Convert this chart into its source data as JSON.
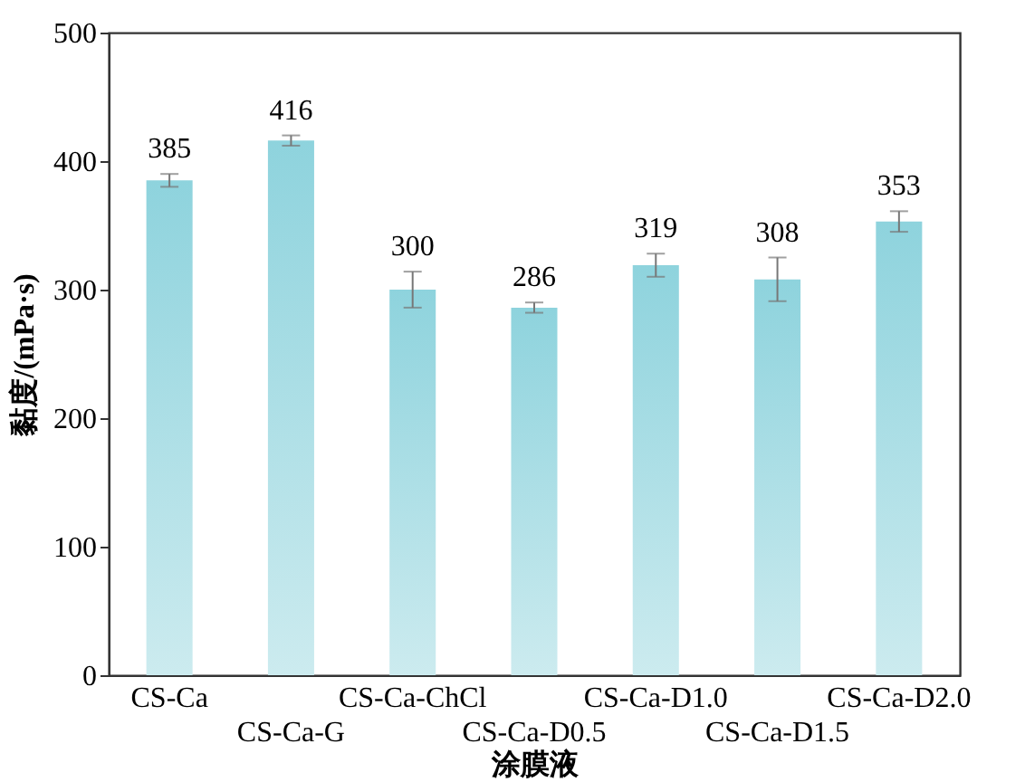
{
  "chart_data": {
    "type": "bar",
    "xlabel": "涂膜液",
    "ylabel": "黏度/(mPa·s)",
    "categories": [
      "CS-Ca",
      "CS-Ca-G",
      "CS-Ca-ChCl",
      "CS-Ca-D0.5",
      "CS-Ca-D1.0",
      "CS-Ca-D1.5",
      "CS-Ca-D2.0"
    ],
    "values": [
      385,
      416,
      300,
      286,
      319,
      308,
      353
    ],
    "errors": [
      5,
      4,
      14,
      4,
      9,
      17,
      8
    ],
    "color": "#8ed3dd",
    "data_labels": true,
    "ylim": [
      0,
      500
    ],
    "yticks": [
      0,
      100,
      200,
      300,
      400,
      500
    ],
    "grid": false
  }
}
